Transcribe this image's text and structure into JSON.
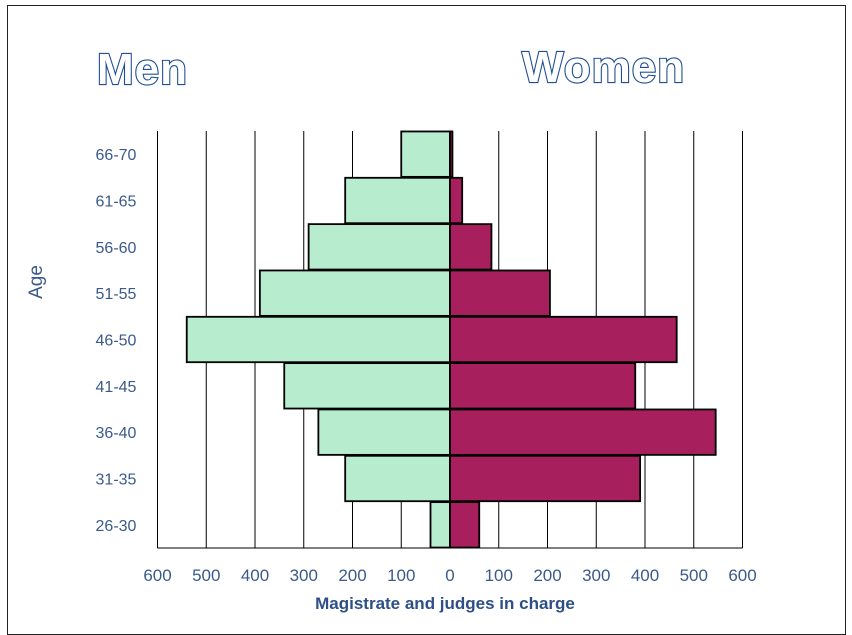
{
  "chart_data": {
    "type": "bar",
    "orientation": "horizontal",
    "layout": "population-pyramid",
    "group_titles": {
      "left": "Men",
      "right": "Women"
    },
    "categories": [
      "26-30",
      "31-35",
      "36-40",
      "41-45",
      "46-50",
      "51-55",
      "56-60",
      "61-65",
      "66-70"
    ],
    "series": [
      {
        "name": "Men",
        "side": "left",
        "values": [
          40,
          215,
          270,
          340,
          540,
          390,
          290,
          215,
          100
        ],
        "color": "#b8eccf"
      },
      {
        "name": "Women",
        "side": "right",
        "values": [
          60,
          390,
          545,
          380,
          465,
          205,
          85,
          25,
          5
        ],
        "color": "#a81f5e"
      }
    ],
    "x_ticks": [
      "600",
      "500",
      "400",
      "300",
      "200",
      "100",
      "0",
      "100",
      "200",
      "300",
      "400",
      "500",
      "600"
    ],
    "xlim": [
      -600,
      600
    ],
    "xlabel": "Magistrate and judges in charge",
    "ylabel": "Age",
    "grid": "vertical",
    "legend": "none"
  }
}
